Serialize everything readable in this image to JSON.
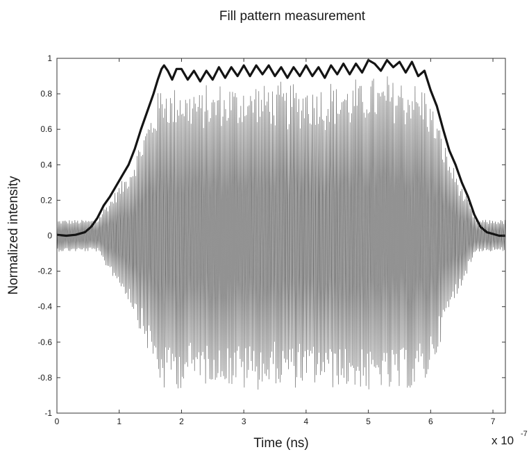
{
  "chart_data": {
    "type": "line",
    "title": "Fill pattern measurement",
    "xlabel": "Time (ns)",
    "ylabel": "Normalized intensity",
    "x_scale_label": "x 10",
    "x_scale_exponent": "-7",
    "xlim": [
      0,
      7.2
    ],
    "ylim": [
      -1,
      1
    ],
    "x_ticks": [
      {
        "value": 0,
        "label": "0"
      },
      {
        "value": 1,
        "label": "1"
      },
      {
        "value": 2,
        "label": "2"
      },
      {
        "value": 3,
        "label": "3"
      },
      {
        "value": 4,
        "label": "4"
      },
      {
        "value": 5,
        "label": "5"
      },
      {
        "value": 6,
        "label": "6"
      },
      {
        "value": 7,
        "label": "7"
      }
    ],
    "y_ticks": [
      {
        "value": 1,
        "label": "1"
      },
      {
        "value": 0.8,
        "label": "0.8"
      },
      {
        "value": 0.6,
        "label": "0.6"
      },
      {
        "value": 0.4,
        "label": "0.4"
      },
      {
        "value": 0.2,
        "label": "0.2"
      },
      {
        "value": 0,
        "label": "0"
      },
      {
        "value": -0.2,
        "label": "-0.2"
      },
      {
        "value": -0.4,
        "label": "-0.4"
      },
      {
        "value": -0.6,
        "label": "-0.6"
      },
      {
        "value": -0.8,
        "label": "-0.8"
      },
      {
        "value": -1,
        "label": "-1"
      }
    ],
    "grid": false,
    "series": [
      {
        "role": "signal",
        "color": "#4a4a4a",
        "oscillation_period": 0.0222,
        "noise_floor": 0.09,
        "envelope_scale": 0.92
      },
      {
        "role": "envelope",
        "color": "#141414",
        "x": [
          0,
          0.15,
          0.3,
          0.45,
          0.55,
          0.65,
          0.75,
          0.85,
          0.95,
          1.05,
          1.15,
          1.25,
          1.35,
          1.45,
          1.55,
          1.62,
          1.68,
          1.72,
          1.78,
          1.85,
          1.92,
          2.0,
          2.1,
          2.2,
          2.3,
          2.4,
          2.5,
          2.6,
          2.7,
          2.8,
          2.9,
          3.0,
          3.1,
          3.2,
          3.3,
          3.4,
          3.5,
          3.6,
          3.7,
          3.8,
          3.9,
          4.0,
          4.1,
          4.2,
          4.3,
          4.4,
          4.5,
          4.6,
          4.7,
          4.8,
          4.9,
          5.0,
          5.05,
          5.1,
          5.2,
          5.3,
          5.4,
          5.5,
          5.6,
          5.7,
          5.8,
          5.9,
          6.0,
          6.1,
          6.2,
          6.3,
          6.4,
          6.5,
          6.6,
          6.7,
          6.8,
          6.9,
          7.0,
          7.1,
          7.2
        ],
        "y": [
          0.005,
          0.0,
          0.005,
          0.02,
          0.05,
          0.1,
          0.17,
          0.22,
          0.28,
          0.34,
          0.4,
          0.49,
          0.6,
          0.7,
          0.8,
          0.88,
          0.94,
          0.96,
          0.93,
          0.88,
          0.94,
          0.94,
          0.88,
          0.93,
          0.87,
          0.93,
          0.88,
          0.95,
          0.89,
          0.95,
          0.9,
          0.96,
          0.9,
          0.96,
          0.91,
          0.96,
          0.9,
          0.95,
          0.89,
          0.95,
          0.9,
          0.96,
          0.9,
          0.95,
          0.89,
          0.96,
          0.91,
          0.97,
          0.91,
          0.97,
          0.92,
          0.99,
          0.98,
          0.97,
          0.93,
          0.99,
          0.95,
          0.98,
          0.92,
          0.98,
          0.9,
          0.93,
          0.82,
          0.73,
          0.6,
          0.48,
          0.4,
          0.3,
          0.22,
          0.12,
          0.05,
          0.02,
          0.01,
          0.0,
          0.0
        ]
      }
    ]
  }
}
